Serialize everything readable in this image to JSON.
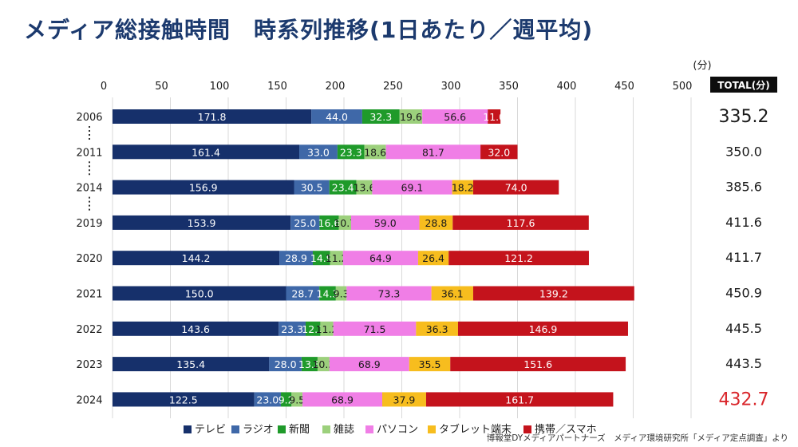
{
  "title": "メディア総接触時間　時系列推移(1日あたり／週平均)",
  "credit": "博報堂DYメディアパートナーズ　メディア環境研究所「メディア定点調査」より",
  "chart_data": {
    "type": "bar",
    "orientation": "horizontal",
    "stacked": true,
    "unit_label": "(分)",
    "total_header": "TOTAL(分)",
    "xlim": [
      0,
      500
    ],
    "xticks": [
      0,
      50,
      100,
      150,
      200,
      250,
      300,
      350,
      400,
      450,
      500
    ],
    "grid": true,
    "legend_position": "bottom",
    "categories": [
      "2006",
      "2011",
      "2014",
      "2019",
      "2020",
      "2021",
      "2022",
      "2023",
      "2024"
    ],
    "series": [
      {
        "name": "テレビ",
        "color": "#16306b",
        "values": [
          171.8,
          161.4,
          156.9,
          153.9,
          144.2,
          150.0,
          143.6,
          135.4,
          122.5
        ]
      },
      {
        "name": "ラジオ",
        "color": "#3f68a8",
        "values": [
          44.0,
          33.0,
          30.5,
          25.0,
          28.9,
          28.7,
          23.3,
          28.0,
          23.0
        ]
      },
      {
        "name": "新聞",
        "color": "#1f9a2a",
        "values": [
          32.3,
          23.3,
          23.4,
          16.6,
          14.9,
          14.3,
          12.7,
          13.8,
          9.2
        ]
      },
      {
        "name": "雑誌",
        "color": "#9cd07c",
        "values": [
          19.6,
          18.6,
          13.6,
          10.7,
          11.2,
          9.3,
          11.2,
          10.3,
          9.5
        ]
      },
      {
        "name": "パソコン",
        "color": "#f07ee6",
        "values": [
          56.6,
          81.7,
          69.1,
          59.0,
          64.9,
          73.3,
          71.5,
          68.9,
          68.9
        ]
      },
      {
        "name": "タブレット端末",
        "color": "#f7bd1e",
        "values": [
          null,
          null,
          18.2,
          28.8,
          26.4,
          36.1,
          36.3,
          35.5,
          37.9
        ]
      },
      {
        "name": "携帯／スマホ",
        "color": "#c4131c",
        "values": [
          11.0,
          32.0,
          74.0,
          117.6,
          121.2,
          139.2,
          146.9,
          151.6,
          161.7
        ]
      }
    ],
    "segment_labels": [
      [
        "171.8",
        "44.0",
        "32.3",
        "19.6",
        "56.6",
        "",
        "11.0"
      ],
      [
        "161.4",
        "33.0",
        "23.3",
        "18.6",
        "81.7",
        "",
        "32.0"
      ],
      [
        "156.9",
        "30.5",
        "23.4",
        "13.6",
        "69.1",
        "18.2",
        "74.0"
      ],
      [
        "153.9",
        "25.0",
        "16.6",
        "10.7",
        "59.0",
        "28.8",
        "117.6"
      ],
      [
        "144.2",
        "28.9",
        "14.9",
        "11.2",
        "64.9",
        "26.4",
        "121.2"
      ],
      [
        "150.0",
        "28.7",
        "14.3",
        "9.3",
        "73.3",
        "36.1",
        "139.2"
      ],
      [
        "143.6",
        "23.3",
        "12.7",
        "11.2",
        "71.5",
        "36.3",
        "146.9"
      ],
      [
        "135.4",
        "28.0",
        "13.8",
        "10.3",
        "68.9",
        "35.5",
        "151.6"
      ],
      [
        "122.5",
        "23.0",
        "9.2",
        "9.5",
        "68.9",
        "37.9",
        "161.7"
      ]
    ],
    "totals": [
      "335.2",
      "350.0",
      "385.6",
      "411.6",
      "411.7",
      "450.9",
      "445.5",
      "443.5",
      "432.7"
    ],
    "emphasized_totals": {
      "2006": "#1a1a1a",
      "2024": "#d9262b"
    },
    "gap_after": [
      "2006",
      "2011",
      "2014"
    ]
  }
}
